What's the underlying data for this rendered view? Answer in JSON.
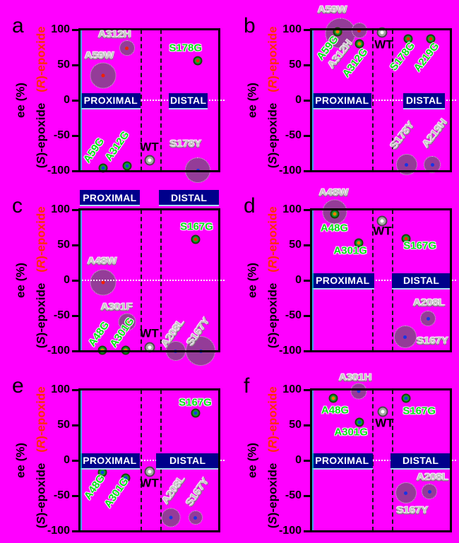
{
  "figure": {
    "background_color": "#FF00FF",
    "y_axis": {
      "title": "ee (%)",
      "upper_enantiomer_label": "(R)-epoxide",
      "lower_enantiomer_label": "(S)-epoxide",
      "upper_label_color": "#FF2D00",
      "tick_labels": [
        "100",
        "50",
        "0",
        "-50",
        "-100"
      ]
    },
    "regions": {
      "proximal_label": "PROXIMAL",
      "distal_label": "DISTAL",
      "box_color": "#00008B",
      "text_color": "#FFFFFF"
    },
    "marker_colors": {
      "bubble_fill": "#943C98",
      "green_fill": "#0FA02F",
      "wt_fill": "#A8A8A8",
      "center_red": "#F22000",
      "center_orange": "#FF7800",
      "center_blue": "#1734E6",
      "center_white": "#FFFFFF"
    },
    "label_colors": {
      "green": "#00E414",
      "gray": "#C4C4C4",
      "black": "#000000"
    }
  },
  "chart_data": {
    "type": "scatter",
    "ylabel": "ee (%)",
    "ylim": [
      -100,
      100
    ],
    "tick_values": [
      100,
      50,
      0,
      -50,
      -100
    ],
    "dashed_line_x": [
      0.435,
      0.58
    ],
    "panels": [
      {
        "letter": "a",
        "regions_position": "middle",
        "proximal_box": [
          0.01,
          0.435
        ],
        "distal_box": [
          0.64,
          0.92
        ],
        "points": [
          {
            "name": "A59W",
            "kind": "bubble",
            "x": 0.17,
            "ee": 35,
            "d": 37,
            "center": "red"
          },
          {
            "name": "A312H",
            "kind": "bubble",
            "x": 0.34,
            "ee": 74,
            "d": 22,
            "center": "red"
          },
          {
            "name": "S178Y",
            "kind": "bubble",
            "x": 0.85,
            "ee": -99,
            "d": 36,
            "center": "blue"
          },
          {
            "name": "A59G",
            "kind": "green",
            "x": 0.17,
            "ee": -96,
            "center": "blue"
          },
          {
            "name": "A312G",
            "kind": "green",
            "x": 0.34,
            "ee": -93,
            "center": "blue"
          },
          {
            "name": "S178G",
            "kind": "green",
            "x": 0.85,
            "ee": 56,
            "center": "red"
          },
          {
            "name": "WT",
            "kind": "wt",
            "x": 0.505,
            "ee": -85,
            "center": "white"
          }
        ],
        "labels": [
          {
            "text": "A312H",
            "style": "gray",
            "x": 0.25,
            "ee": 93,
            "rot": 0
          },
          {
            "text": "A59W",
            "style": "gray",
            "x": 0.14,
            "ee": 63,
            "rot": 0
          },
          {
            "text": "S178G",
            "style": "green",
            "x": 0.76,
            "ee": 74,
            "rot": 0
          },
          {
            "text": "A59G",
            "style": "green",
            "x": 0.1,
            "ee": -71,
            "rot": -55
          },
          {
            "text": "A312G",
            "style": "green",
            "x": 0.27,
            "ee": -65,
            "rot": -55
          },
          {
            "text": "WT",
            "style": "black",
            "x": 0.5,
            "ee": -66,
            "rot": 0
          },
          {
            "text": "S178Y",
            "style": "gray",
            "x": 0.76,
            "ee": -62,
            "rot": 0
          }
        ]
      },
      {
        "letter": "b",
        "regions_position": "middle",
        "proximal_box": [
          0.01,
          0.43
        ],
        "distal_box": [
          0.66,
          0.96
        ],
        "points": [
          {
            "name": "A59W",
            "kind": "bubble",
            "x": 0.21,
            "ee": 95,
            "d": 43,
            "center": "red"
          },
          {
            "name": "A312H",
            "kind": "bubble",
            "x": 0.345,
            "ee": 99,
            "d": 22,
            "center": "red"
          },
          {
            "name": "S178Y",
            "kind": "bubble",
            "x": 0.685,
            "ee": -91,
            "d": 30,
            "center": "blue"
          },
          {
            "name": "A219H",
            "kind": "bubble",
            "x": 0.87,
            "ee": -91,
            "d": 24,
            "center": "blue"
          },
          {
            "name": "A59G",
            "kind": "green",
            "x": 0.19,
            "ee": 97,
            "center": "orange"
          },
          {
            "name": "A312G",
            "kind": "green",
            "x": 0.345,
            "ee": 80,
            "center": "orange"
          },
          {
            "name": "S178G",
            "kind": "green",
            "x": 0.695,
            "ee": 87,
            "center": "red"
          },
          {
            "name": "A219G",
            "kind": "green",
            "x": 0.86,
            "ee": 87,
            "center": "red"
          },
          {
            "name": "WT",
            "kind": "wt",
            "x": 0.51,
            "ee": 96,
            "center": "white"
          }
        ],
        "labels": [
          {
            "text": "A59W",
            "style": "gray",
            "x": 0.15,
            "ee": 128,
            "rot": 0
          },
          {
            "text": "A59G",
            "style": "green",
            "x": 0.115,
            "ee": 74,
            "rot": -52
          },
          {
            "text": "A312H",
            "style": "gray",
            "x": 0.21,
            "ee": 65,
            "rot": -52
          },
          {
            "text": "A312G",
            "style": "green",
            "x": 0.315,
            "ee": 53,
            "rot": -52
          },
          {
            "text": "WT",
            "style": "black",
            "x": 0.52,
            "ee": 79,
            "rot": 0
          },
          {
            "text": "S178G",
            "style": "green",
            "x": 0.655,
            "ee": 62,
            "rot": -52
          },
          {
            "text": "A219G",
            "style": "green",
            "x": 0.825,
            "ee": 61,
            "rot": -52
          },
          {
            "text": "S178Y",
            "style": "gray",
            "x": 0.655,
            "ee": -50,
            "rot": -52
          },
          {
            "text": "A219H",
            "style": "gray",
            "x": 0.89,
            "ee": -47,
            "rot": -52
          }
        ]
      },
      {
        "letter": "c",
        "regions_position": "top",
        "proximal_box": [
          0.0,
          0.43
        ],
        "distal_box": [
          0.57,
          1.0
        ],
        "points": [
          {
            "name": "A48W",
            "kind": "bubble",
            "x": 0.165,
            "ee": -3,
            "d": 37,
            "center": "red"
          },
          {
            "name": "A301F",
            "kind": "bubble",
            "x": 0.34,
            "ee": -59,
            "d": 25,
            "center": "red"
          },
          {
            "name": "A208L",
            "kind": "bubble",
            "x": 0.69,
            "ee": -100,
            "d": 28,
            "center": "blue"
          },
          {
            "name": "S167Y",
            "kind": "bubble",
            "x": 0.87,
            "ee": -100,
            "d": 42,
            "center": "blue"
          },
          {
            "name": "A48G",
            "kind": "green",
            "x": 0.16,
            "ee": -99,
            "center": "orange"
          },
          {
            "name": "A301G",
            "kind": "green",
            "x": 0.33,
            "ee": -99,
            "center": "orange"
          },
          {
            "name": "S167G",
            "kind": "green",
            "x": 0.835,
            "ee": 58,
            "center": "red"
          },
          {
            "name": "WT",
            "kind": "wt",
            "x": 0.505,
            "ee": -95,
            "center": "white"
          }
        ],
        "labels": [
          {
            "text": "S167G",
            "style": "green",
            "x": 0.84,
            "ee": 76,
            "rot": 0
          },
          {
            "text": "A48W",
            "style": "gray",
            "x": 0.16,
            "ee": 27,
            "rot": 0
          },
          {
            "text": "A301F",
            "style": "gray",
            "x": 0.265,
            "ee": -38,
            "rot": 0
          },
          {
            "text": "A48G",
            "style": "green",
            "x": 0.135,
            "ee": -76,
            "rot": -55
          },
          {
            "text": "A301G",
            "style": "green",
            "x": 0.305,
            "ee": -74,
            "rot": -55
          },
          {
            "text": "WT",
            "style": "black",
            "x": 0.5,
            "ee": -75,
            "rot": 0
          },
          {
            "text": "A208L",
            "style": "gray",
            "x": 0.67,
            "ee": -75,
            "rot": -55
          },
          {
            "text": "S167Y",
            "style": "gray",
            "x": 0.855,
            "ee": -73,
            "rot": -55
          }
        ]
      },
      {
        "letter": "d",
        "regions_position": "middle",
        "proximal_box": [
          0.0,
          0.45
        ],
        "distal_box": [
          0.58,
          1.0
        ],
        "points": [
          {
            "name": "A48W",
            "kind": "bubble",
            "x": 0.167,
            "ee": 97,
            "d": 35,
            "center": "red"
          },
          {
            "name": "S167Y",
            "kind": "bubble",
            "x": 0.675,
            "ee": -80,
            "d": 32,
            "center": "blue"
          },
          {
            "name": "A208L",
            "kind": "bubble",
            "x": 0.84,
            "ee": -54,
            "d": 22,
            "center": "blue"
          },
          {
            "name": "A48G",
            "kind": "green",
            "x": 0.167,
            "ee": 94,
            "center": "orange"
          },
          {
            "name": "A301G",
            "kind": "green",
            "x": 0.34,
            "ee": 53,
            "center": "orange"
          },
          {
            "name": "S167G",
            "kind": "green",
            "x": 0.68,
            "ee": 59,
            "center": "red"
          },
          {
            "name": "WT",
            "kind": "wt",
            "x": 0.51,
            "ee": 84,
            "center": "white"
          }
        ],
        "labels": [
          {
            "text": "A48W",
            "style": "gray",
            "x": 0.16,
            "ee": 124,
            "rot": 0
          },
          {
            "text": "A48G",
            "style": "green",
            "x": 0.165,
            "ee": 74,
            "rot": 0
          },
          {
            "text": "A301G",
            "style": "green",
            "x": 0.28,
            "ee": 42,
            "rot": 0
          },
          {
            "text": "WT",
            "style": "black",
            "x": 0.51,
            "ee": 70,
            "rot": 0
          },
          {
            "text": "S167G",
            "style": "green",
            "x": 0.78,
            "ee": 49,
            "rot": 0
          },
          {
            "text": "A208L",
            "style": "gray",
            "x": 0.845,
            "ee": -32,
            "rot": 0
          },
          {
            "text": "S167Y",
            "style": "gray",
            "x": 0.87,
            "ee": -86,
            "rot": 0
          }
        ]
      },
      {
        "letter": "e",
        "regions_position": "middle",
        "proximal_box": [
          0.0,
          0.43
        ],
        "distal_box": [
          0.55,
          1.0
        ],
        "points": [
          {
            "name": "A208L",
            "kind": "bubble",
            "x": 0.655,
            "ee": -81,
            "d": 27,
            "center": "blue"
          },
          {
            "name": "S167Y",
            "kind": "bubble",
            "x": 0.83,
            "ee": -81,
            "d": 20,
            "center": "blue"
          },
          {
            "name": "S167G",
            "kind": "green",
            "x": 0.83,
            "ee": 67,
            "center": "blue"
          },
          {
            "name": "A48G",
            "kind": "green",
            "x": 0.16,
            "ee": -17,
            "center": "blue"
          },
          {
            "name": "A301G",
            "kind": "green",
            "x": 0.33,
            "ee": -25,
            "center": "blue"
          },
          {
            "name": "WT",
            "kind": "wt",
            "x": 0.505,
            "ee": -16,
            "center": "white"
          }
        ],
        "labels": [
          {
            "text": "S167G",
            "style": "green",
            "x": 0.83,
            "ee": 82,
            "rot": 0
          },
          {
            "text": "A48G",
            "style": "green",
            "x": 0.105,
            "ee": -38,
            "rot": -55
          },
          {
            "text": "A301G",
            "style": "green",
            "x": 0.265,
            "ee": -46,
            "rot": -55
          },
          {
            "text": "WT",
            "style": "black",
            "x": 0.5,
            "ee": -32,
            "rot": 0
          },
          {
            "text": "A208L",
            "style": "gray",
            "x": 0.675,
            "ee": -42,
            "rot": -55
          },
          {
            "text": "S167Y",
            "style": "gray",
            "x": 0.85,
            "ee": -45,
            "rot": -55
          }
        ]
      },
      {
        "letter": "f",
        "regions_position": "middle",
        "proximal_box": [
          0.0,
          0.44
        ],
        "distal_box": [
          0.57,
          1.0
        ],
        "points": [
          {
            "name": "A301H",
            "kind": "bubble",
            "x": 0.34,
            "ee": 98,
            "d": 23,
            "center": "blue"
          },
          {
            "name": "S167Y",
            "kind": "bubble",
            "x": 0.68,
            "ee": -46,
            "d": 30,
            "center": "blue"
          },
          {
            "name": "A208L",
            "kind": "bubble",
            "x": 0.85,
            "ee": -44,
            "d": 22,
            "center": "blue"
          },
          {
            "name": "A48G",
            "kind": "green",
            "x": 0.157,
            "ee": 88,
            "center": "orange"
          },
          {
            "name": "A301G",
            "kind": "green",
            "x": 0.345,
            "ee": 54,
            "center": "blue"
          },
          {
            "name": "S167G",
            "kind": "green",
            "x": 0.68,
            "ee": 88,
            "center": "blue"
          },
          {
            "name": "WT",
            "kind": "wt",
            "x": 0.515,
            "ee": 69,
            "center": "white"
          }
        ],
        "labels": [
          {
            "text": "A301H",
            "style": "gray",
            "x": 0.315,
            "ee": 117,
            "rot": 0
          },
          {
            "text": "A48G",
            "style": "green",
            "x": 0.17,
            "ee": 71,
            "rot": 0
          },
          {
            "text": "A301G",
            "style": "green",
            "x": 0.285,
            "ee": 40,
            "rot": 0
          },
          {
            "text": "WT",
            "style": "black",
            "x": 0.525,
            "ee": 53,
            "rot": 0
          },
          {
            "text": "S167G",
            "style": "green",
            "x": 0.775,
            "ee": 70,
            "rot": 0
          },
          {
            "text": "S167Y",
            "style": "gray",
            "x": 0.725,
            "ee": -71,
            "rot": 0
          },
          {
            "text": "A208L",
            "style": "gray",
            "x": 0.87,
            "ee": -24,
            "rot": 0
          }
        ]
      }
    ]
  }
}
